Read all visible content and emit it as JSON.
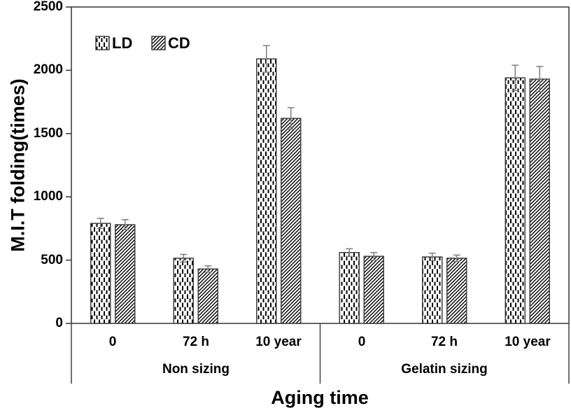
{
  "chart_data": {
    "type": "bar",
    "title": "",
    "xlabel": "Aging time",
    "ylabel": "M.I.T folding(times)",
    "ylim": [
      0,
      2500
    ],
    "yticks": [
      "0",
      "500",
      "1000",
      "1500",
      "2000",
      "2500"
    ],
    "grid": false,
    "groups": [
      {
        "label": "Non sizing",
        "categories": [
          "0",
          "72 h",
          "10 year"
        ]
      },
      {
        "label": "Gelatin sizing",
        "categories": [
          "0",
          "72 h",
          "10 year"
        ]
      }
    ],
    "series": [
      {
        "name": "LD",
        "pattern": "vertical-dashes",
        "values": [
          790,
          515,
          2090,
          560,
          525,
          1940
        ],
        "errors": [
          40,
          30,
          105,
          30,
          30,
          100
        ]
      },
      {
        "name": "CD",
        "pattern": "diagonal-hatch",
        "values": [
          780,
          430,
          1620,
          530,
          515,
          1930
        ],
        "errors": [
          40,
          25,
          85,
          30,
          25,
          100
        ]
      }
    ],
    "legend": {
      "position": "top-left-inside",
      "entries": [
        "LD",
        "CD"
      ]
    },
    "colors": {
      "background": "#ffffff",
      "bar_fill": "#ffffff",
      "bar_outline": "#404040",
      "pattern": "#000000",
      "axis": "#404040",
      "error_bar": "#7f7f7f",
      "text": "#000000"
    }
  }
}
